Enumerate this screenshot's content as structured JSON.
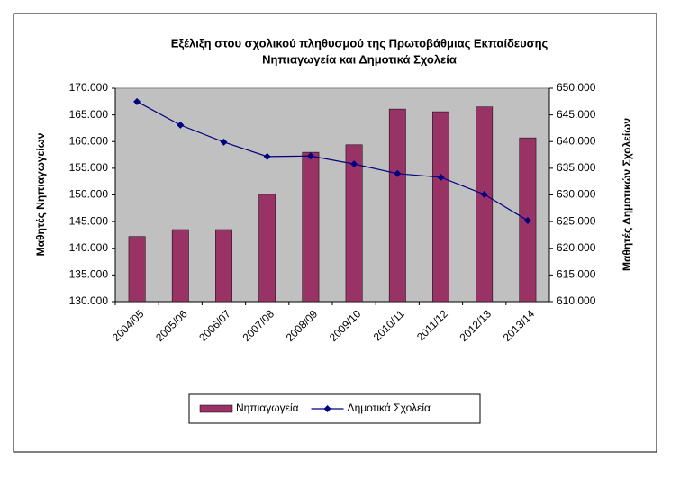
{
  "chart_data": {
    "type": "bar_line",
    "title": [
      "Εξέλιξη στου σχολικού πληθυσμού της Πρωτοβάθμιας Εκπαίδευσης",
      "Νηπιαγωγεία και Δημοτικά Σχολεία"
    ],
    "y_label": "Μαθητές Νηπιαγωγείων",
    "y2_label": "Μαθητές Δημοτικών Σχολείων",
    "categories": [
      "2004/05",
      "2005/06",
      "2006/07",
      "2007/08",
      "2008/09",
      "2009/10",
      "2010/11",
      "2011/12",
      "2012/13",
      "2013/14"
    ],
    "series": [
      {
        "name": "Νηπιαγωγεία",
        "type": "bar",
        "axis": "y",
        "color": "#993366",
        "values": [
          142200,
          143500,
          143500,
          150100,
          158000,
          159400,
          166100,
          165600,
          166500,
          160700
        ]
      },
      {
        "name": "Δημοτικά Σχολεία",
        "type": "line",
        "axis": "y2",
        "color": "#000080",
        "values": [
          647500,
          643100,
          639900,
          637200,
          637300,
          635800,
          634000,
          633300,
          630100,
          625200
        ]
      }
    ],
    "ylim": [
      130000,
      170000
    ],
    "yticks": [
      {
        "value": 130000,
        "label": "130.000"
      },
      {
        "value": 135000,
        "label": "135.000"
      },
      {
        "value": 140000,
        "label": "140.000"
      },
      {
        "value": 145000,
        "label": "145.000"
      },
      {
        "value": 150000,
        "label": "150.000"
      },
      {
        "value": 155000,
        "label": "155.000"
      },
      {
        "value": 160000,
        "label": "160.000"
      },
      {
        "value": 165000,
        "label": "165.000"
      },
      {
        "value": 170000,
        "label": "170.000"
      }
    ],
    "y2lim": [
      610000,
      650000
    ],
    "y2ticks": [
      {
        "value": 610000,
        "label": "610.000"
      },
      {
        "value": 615000,
        "label": "615.000"
      },
      {
        "value": 620000,
        "label": "620.000"
      },
      {
        "value": 625000,
        "label": "625.000"
      },
      {
        "value": 630000,
        "label": "630.000"
      },
      {
        "value": 635000,
        "label": "635.000"
      },
      {
        "value": 640000,
        "label": "640.000"
      },
      {
        "value": 645000,
        "label": "645.000"
      },
      {
        "value": 650000,
        "label": "650.000"
      }
    ],
    "plot_background": "#c0c0c0",
    "grid": false,
    "legend": "bottom"
  }
}
